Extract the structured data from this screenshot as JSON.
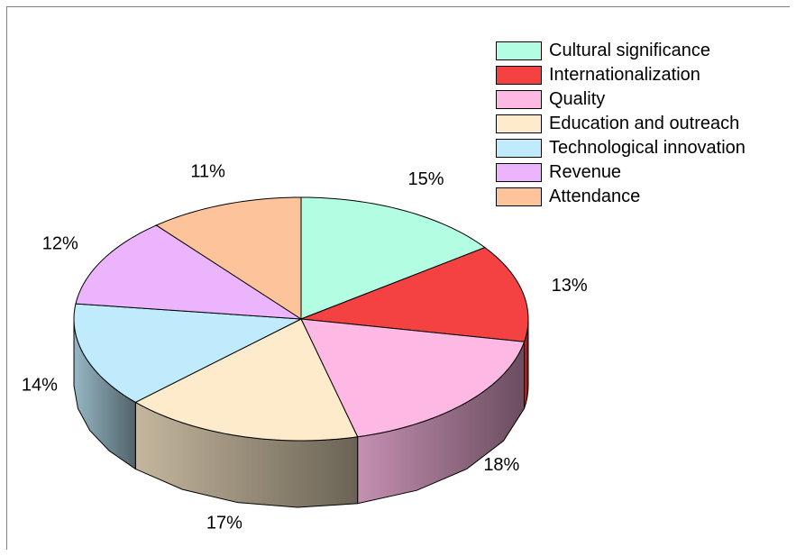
{
  "chart_data": {
    "type": "pie",
    "style": "3d",
    "legend_position": "top-right",
    "categories": [
      "Cultural significance",
      "Internationalization",
      "Quality",
      "Education and outreach",
      "Technological innovation",
      "Revenue",
      "Attendance"
    ],
    "values": [
      15,
      13,
      18,
      17,
      14,
      12,
      11
    ],
    "labels": [
      "15%",
      "13%",
      "18%",
      "17%",
      "14%",
      "12%",
      "11%"
    ],
    "colors": [
      "#b3fde3",
      "#f44142",
      "#fdb8e3",
      "#fdebcb",
      "#c0ebfd",
      "#ecb4fd",
      "#fdc39b"
    ]
  }
}
